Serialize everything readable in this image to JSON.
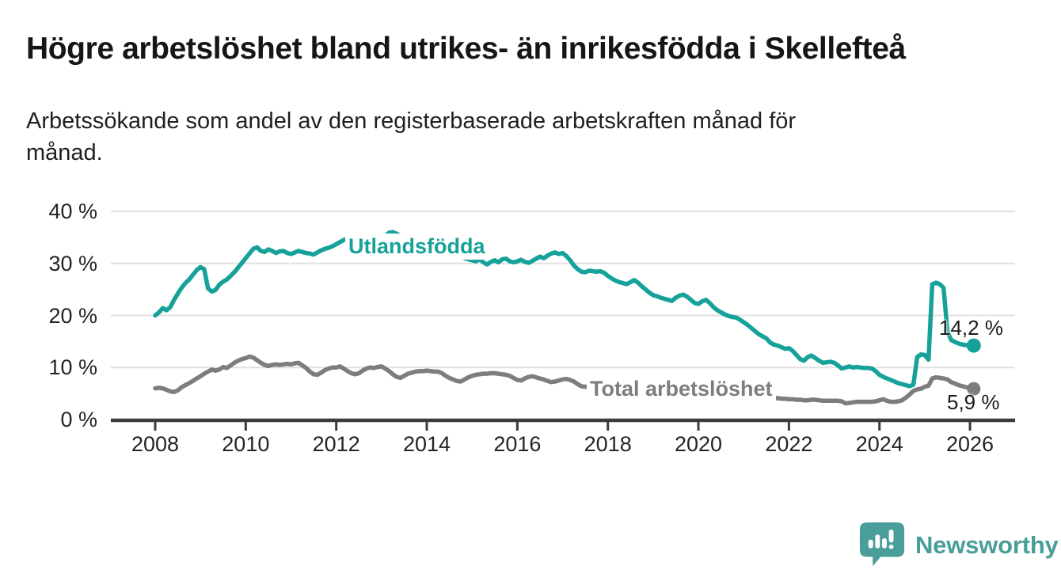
{
  "header": {
    "title": "Högre arbetslöshet bland utrikes- än inrikesfödda i Skellefteå",
    "subtitle_line1": "Arbetssökande som andel av den registerbaserade arbetskraften månad för",
    "subtitle_line2": "månad."
  },
  "colors": {
    "foreign_born": "#16a29a",
    "total": "#7d7d7d",
    "grid": "#e1e1e1",
    "axis": "#3c3c3c",
    "text": "#1b1b1b",
    "logo": "#4a9e99"
  },
  "chart_data": {
    "type": "line",
    "unit": "%",
    "grid": "horizontal",
    "legend_position": "inline-labels",
    "x_start": 2008.0,
    "points_per_year": 12,
    "x_end_approx": 2026.1,
    "y_axis": {
      "min": 0,
      "max": 40,
      "ticks": [
        {
          "value": 40,
          "label": "40 %"
        },
        {
          "value": 30,
          "label": "30 %"
        },
        {
          "value": 20,
          "label": "20 %"
        },
        {
          "value": 10,
          "label": "10 %"
        },
        {
          "value": 0,
          "label": "0 %"
        }
      ]
    },
    "x_axis": {
      "ticks": [
        {
          "value": 2008,
          "label": "2008"
        },
        {
          "value": 2010,
          "label": "2010"
        },
        {
          "value": 2012,
          "label": "2012"
        },
        {
          "value": 2014,
          "label": "2014"
        },
        {
          "value": 2016,
          "label": "2016"
        },
        {
          "value": 2018,
          "label": "2018"
        },
        {
          "value": 2020,
          "label": "2020"
        },
        {
          "value": 2022,
          "label": "2022"
        },
        {
          "value": 2024,
          "label": "2024"
        },
        {
          "value": 2026,
          "label": "2026"
        }
      ]
    },
    "series": [
      {
        "id": "foreign",
        "name": "Utlandsfödda",
        "color": "#16a29a",
        "end_label": "14,2 %",
        "end_value": 14.2,
        "values": [
          20.0,
          20.6,
          21.4,
          21.0,
          21.6,
          23.0,
          24.2,
          25.3,
          26.2,
          26.9,
          27.8,
          28.7,
          29.3,
          28.9,
          25.2,
          24.6,
          24.9,
          25.9,
          26.5,
          26.9,
          27.6,
          28.3,
          29.2,
          30.1,
          31.0,
          31.9,
          32.8,
          33.1,
          32.4,
          32.2,
          32.7,
          32.4,
          32.0,
          32.3,
          32.4,
          32.0,
          31.8,
          32.1,
          32.4,
          32.2,
          32.0,
          31.9,
          31.7,
          32.1,
          32.5,
          32.8,
          33.0,
          33.3,
          33.7,
          34.1,
          34.5,
          34.8,
          35.0,
          34.6,
          34.4,
          35.1,
          35.3,
          34.2,
          33.9,
          34.5,
          34.7,
          35.3,
          35.9,
          36.0,
          35.7,
          35.3,
          35.0,
          34.7,
          34.4,
          34.2,
          34.0,
          33.8,
          33.5,
          33.2,
          33.0,
          32.7,
          32.4,
          32.2,
          32.0,
          31.8,
          31.5,
          31.3,
          31.0,
          30.8,
          30.6,
          30.4,
          30.8,
          30.2,
          29.8,
          30.3,
          30.6,
          30.2,
          30.8,
          30.9,
          30.4,
          30.2,
          30.4,
          30.7,
          30.3,
          30.1,
          30.5,
          30.9,
          31.3,
          31.0,
          31.5,
          31.9,
          32.1,
          31.8,
          32.0,
          31.4,
          30.6,
          29.6,
          28.9,
          28.4,
          28.3,
          28.6,
          28.5,
          28.4,
          28.5,
          28.2,
          27.6,
          27.1,
          26.7,
          26.4,
          26.2,
          26.0,
          26.4,
          26.8,
          26.3,
          25.6,
          25.0,
          24.4,
          23.9,
          23.7,
          23.4,
          23.2,
          23.0,
          22.8,
          23.4,
          23.8,
          24.0,
          23.6,
          23.0,
          22.4,
          22.2,
          22.7,
          23.0,
          22.4,
          21.6,
          21.0,
          20.6,
          20.2,
          19.9,
          19.7,
          19.6,
          19.2,
          18.7,
          18.2,
          17.6,
          17.0,
          16.4,
          16.0,
          15.6,
          14.8,
          14.4,
          14.2,
          13.9,
          13.6,
          13.7,
          13.2,
          12.4,
          11.6,
          11.3,
          12.0,
          12.3,
          11.8,
          11.3,
          10.9,
          11.0,
          11.1,
          10.9,
          10.4,
          9.8,
          10.0,
          10.2,
          10.0,
          10.1,
          10.0,
          9.9,
          9.9,
          9.8,
          9.3,
          8.6,
          8.2,
          7.9,
          7.6,
          7.3,
          7.0,
          6.8,
          6.6,
          6.4,
          6.7,
          12.0,
          12.5,
          12.4,
          11.5,
          26.0,
          26.3,
          26.0,
          25.3,
          17.0,
          15.3,
          14.9,
          14.6,
          14.4,
          14.3,
          14.2,
          14.2
        ]
      },
      {
        "id": "total",
        "name": "Total arbetslöshet",
        "color": "#7d7d7d",
        "end_label": "5,9 %",
        "end_value": 5.9,
        "values": [
          6.0,
          6.1,
          6.0,
          5.7,
          5.4,
          5.3,
          5.6,
          6.2,
          6.6,
          7.0,
          7.4,
          7.9,
          8.3,
          8.8,
          9.2,
          9.6,
          9.4,
          9.6,
          10.1,
          9.9,
          10.4,
          10.9,
          11.3,
          11.6,
          11.8,
          12.1,
          11.9,
          11.4,
          10.9,
          10.5,
          10.3,
          10.5,
          10.6,
          10.5,
          10.6,
          10.7,
          10.6,
          10.8,
          10.9,
          10.4,
          9.9,
          9.2,
          8.7,
          8.6,
          9.0,
          9.5,
          9.8,
          10.0,
          10.0,
          10.2,
          9.8,
          9.3,
          8.9,
          8.7,
          8.9,
          9.4,
          9.8,
          10.0,
          9.9,
          10.1,
          10.2,
          9.8,
          9.3,
          8.7,
          8.2,
          8.0,
          8.4,
          8.8,
          9.0,
          9.2,
          9.3,
          9.3,
          9.4,
          9.3,
          9.2,
          9.2,
          8.9,
          8.4,
          8.0,
          7.7,
          7.4,
          7.3,
          7.7,
          8.1,
          8.4,
          8.6,
          8.7,
          8.8,
          8.8,
          8.9,
          8.9,
          8.8,
          8.7,
          8.6,
          8.4,
          8.0,
          7.6,
          7.5,
          7.9,
          8.2,
          8.3,
          8.1,
          7.9,
          7.7,
          7.4,
          7.2,
          7.3,
          7.5,
          7.7,
          7.8,
          7.6,
          7.3,
          6.8,
          6.4,
          6.3,
          6.3,
          6.2,
          6.1,
          6.0,
          6.0,
          5.9,
          5.9,
          5.8,
          5.7,
          5.6,
          5.6,
          5.7,
          5.7,
          5.6,
          5.5,
          5.5,
          5.6,
          5.6,
          5.6,
          5.5,
          5.5,
          5.4,
          5.4,
          5.5,
          5.5,
          5.4,
          5.3,
          5.2,
          5.2,
          5.2,
          5.3,
          5.6,
          5.9,
          6.0,
          5.9,
          5.8,
          5.7,
          5.5,
          5.3,
          5.1,
          5.0,
          4.9,
          4.8,
          4.7,
          4.6,
          4.5,
          4.4,
          4.3,
          4.2,
          4.1,
          4.1,
          4.0,
          4.0,
          3.9,
          3.9,
          3.8,
          3.8,
          3.7,
          3.7,
          3.8,
          3.8,
          3.7,
          3.6,
          3.6,
          3.6,
          3.6,
          3.6,
          3.5,
          3.1,
          3.2,
          3.3,
          3.4,
          3.4,
          3.4,
          3.4,
          3.4,
          3.5,
          3.7,
          3.9,
          3.6,
          3.4,
          3.4,
          3.5,
          3.7,
          4.2,
          4.8,
          5.5,
          5.8,
          5.9,
          6.3,
          6.5,
          7.9,
          8.1,
          8.0,
          7.9,
          7.7,
          7.2,
          6.9,
          6.6,
          6.4,
          6.2,
          6.0,
          5.9
        ]
      }
    ]
  },
  "footer": {
    "brand": "Newsworthy"
  }
}
